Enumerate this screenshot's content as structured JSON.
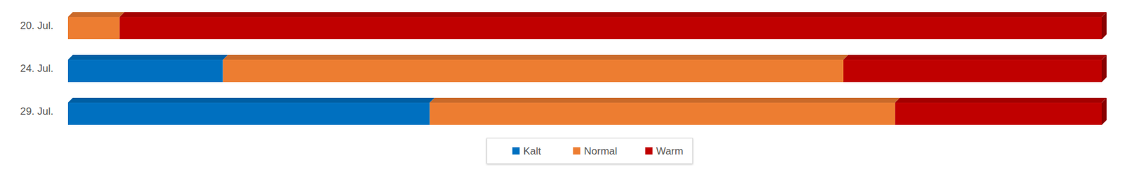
{
  "chart_data": {
    "type": "bar",
    "orientation": "horizontal",
    "stacked": true,
    "categories": [
      "20. Jul.",
      "24. Jul.",
      "29. Jul."
    ],
    "series": [
      {
        "name": "Kalt",
        "color": "#0070c0",
        "values": [
          0,
          15,
          35
        ]
      },
      {
        "name": "Normal",
        "color": "#ed7d31",
        "values": [
          5,
          60,
          45
        ]
      },
      {
        "name": "Warm",
        "color": "#c00000",
        "values": [
          95,
          25,
          20
        ]
      }
    ],
    "xlim": [
      0,
      100
    ],
    "legend": "bottom",
    "tick_labels": "y"
  }
}
